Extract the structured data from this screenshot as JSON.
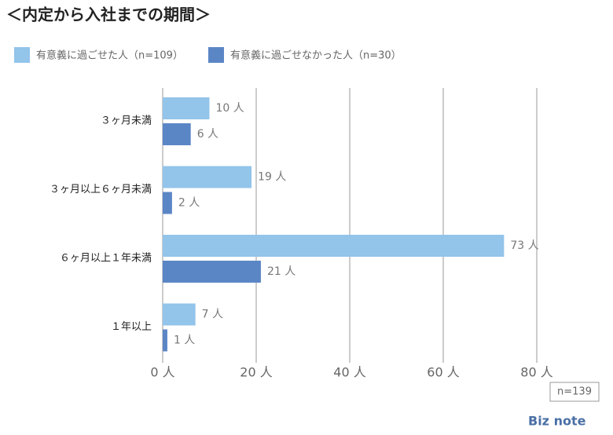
{
  "chart_data": {
    "type": "bar",
    "orientation": "horizontal",
    "title": "＜内定から入社までの期間＞",
    "categories": [
      "３ヶ月未満",
      "３ヶ月以上６ヶ月未満",
      "６ヶ月以上１年未満",
      "１年以上"
    ],
    "series": [
      {
        "name": "有意義に過ごせた人（n=109）",
        "color": "#93c4ea",
        "values": [
          10,
          19,
          73,
          7
        ],
        "value_labels": [
          "10 人",
          "19 人",
          "73 人",
          "7 人"
        ]
      },
      {
        "name": "有意義に過ごせなかった人（n=30）",
        "color": "#5b86c6",
        "values": [
          6,
          2,
          21,
          1
        ],
        "value_labels": [
          "6 人",
          "2 人",
          "21 人",
          "1 人"
        ]
      }
    ],
    "xlim": [
      0,
      80
    ],
    "xticks": [
      {
        "value": 0,
        "label": "0 人"
      },
      {
        "value": 20,
        "label": "20 人"
      },
      {
        "value": 40,
        "label": "40 人"
      },
      {
        "value": 60,
        "label": "60 人"
      },
      {
        "value": 80,
        "label": "80 人"
      }
    ],
    "grid": true,
    "note": "n=139",
    "logo": "Biz note"
  }
}
